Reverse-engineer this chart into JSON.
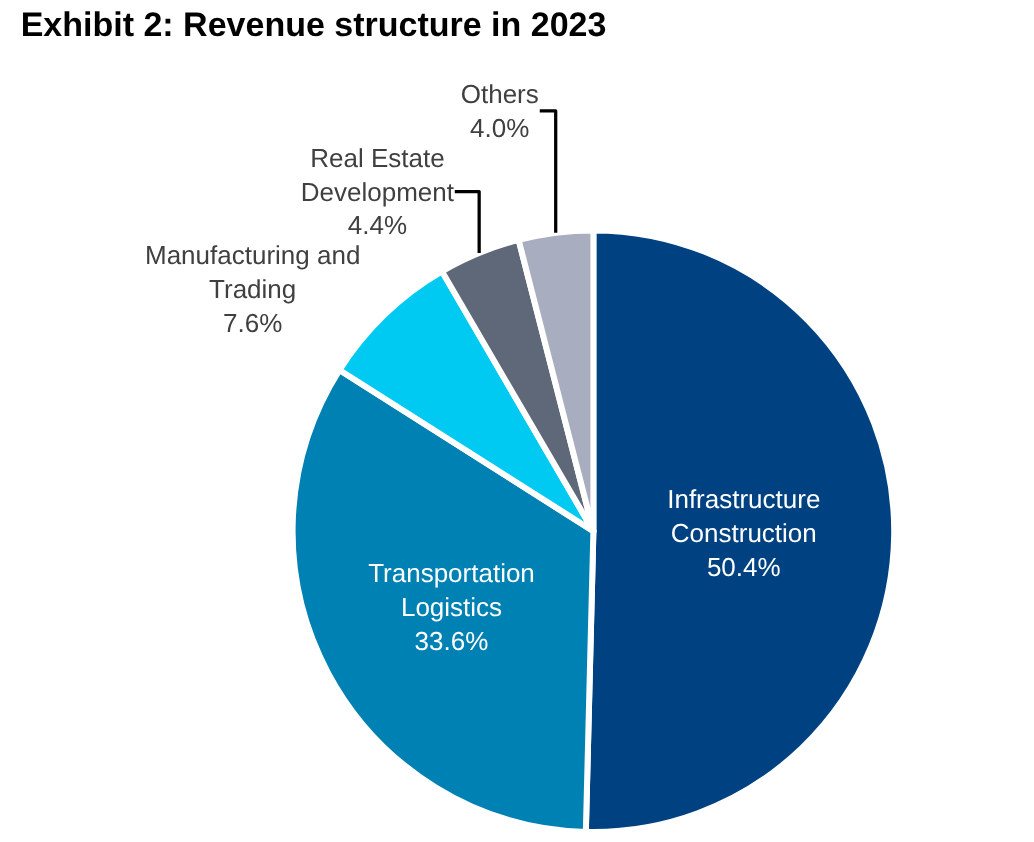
{
  "chart_data": {
    "type": "pie",
    "title": "Exhibit 2: Revenue structure in 2023",
    "categories": [
      "Infrastructure\nConstruction",
      "Transportation\nLogistics",
      "Manufacturing and\nTrading",
      "Real Estate\nDevelopment",
      "Others"
    ],
    "values": [
      50.4,
      33.6,
      7.6,
      4.4,
      4.0
    ],
    "value_labels": [
      "50.4%",
      "33.6%",
      "7.6%",
      "4.4%",
      "4.0%"
    ],
    "colors": [
      "#004281",
      "#0081b3",
      "#00c9f2",
      "#5f6878",
      "#a8adbf"
    ],
    "legend": false
  }
}
